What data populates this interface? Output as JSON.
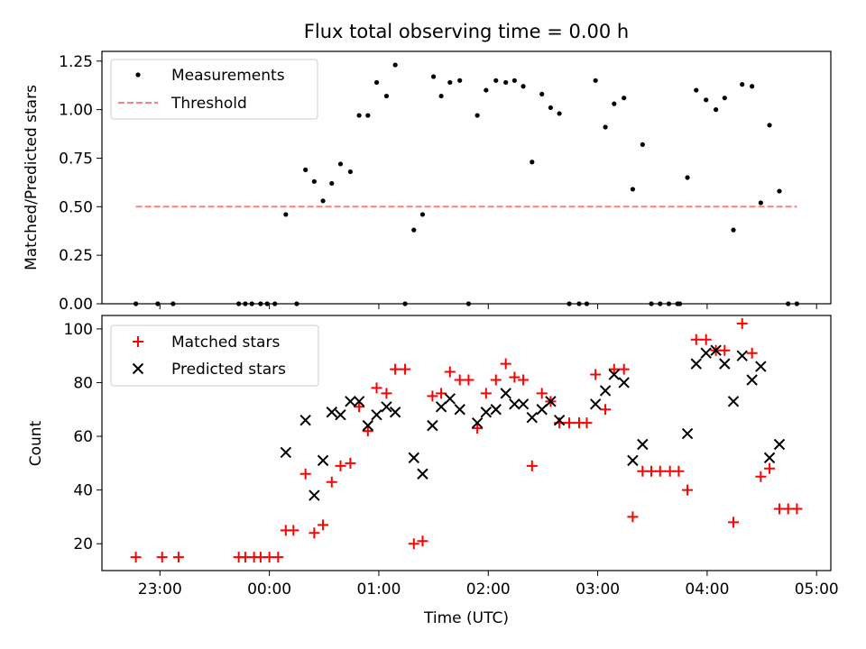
{
  "title": "Flux total observing time = 0.00 h",
  "chart_data": [
    {
      "type": "scatter",
      "panel": "top",
      "xlabel": "",
      "ylabel": "Matched/Predicted stars",
      "ylim": [
        0,
        1.3
      ],
      "yticks": [
        "0.00",
        "0.25",
        "0.50",
        "0.75",
        "1.00",
        "1.25"
      ],
      "legend_position": "top-left",
      "grid": false,
      "series": [
        {
          "name": "Measurements",
          "marker": "dot",
          "color": "#000000",
          "x": [
            22.78,
            22.98,
            23.12,
            23.72,
            23.78,
            23.84,
            23.92,
            23.98,
            24.05,
            24.15,
            24.25,
            24.33,
            24.41,
            24.49,
            24.57,
            24.65,
            24.74,
            24.82,
            24.9,
            24.98,
            25.07,
            25.15,
            25.24,
            25.32,
            25.4,
            25.5,
            25.57,
            25.65,
            25.74,
            25.82,
            25.9,
            25.98,
            26.07,
            26.16,
            26.24,
            26.32,
            26.4,
            26.49,
            26.57,
            26.65,
            26.74,
            26.83,
            26.9,
            26.98,
            27.07,
            27.15,
            27.24,
            27.32,
            27.41,
            27.49,
            27.57,
            27.65,
            27.73,
            27.75,
            27.82,
            27.9,
            27.99,
            28.08,
            28.16,
            28.24,
            28.32,
            28.41,
            28.49,
            28.57,
            28.66,
            28.74,
            28.82
          ],
          "y": [
            0,
            0,
            0,
            0,
            0,
            0,
            0,
            0,
            0,
            0.46,
            0,
            0.69,
            0.63,
            0.53,
            0.62,
            0.72,
            0.68,
            0.97,
            0.97,
            1.14,
            1.07,
            1.23,
            0,
            0.38,
            0.46,
            1.17,
            1.07,
            1.14,
            1.15,
            0,
            0.97,
            1.1,
            1.15,
            1.14,
            1.15,
            1.12,
            0.73,
            1.08,
            1.01,
            0.98,
            0,
            0,
            0,
            1.15,
            0.91,
            1.03,
            1.06,
            0.59,
            0.82,
            0,
            0,
            0,
            0,
            0,
            0.65,
            1.1,
            1.05,
            1.0,
            1.06,
            0.38,
            1.13,
            1.12,
            0.52,
            0.92,
            0.58,
            0,
            0
          ]
        },
        {
          "name": "Threshold",
          "marker": "dashed-line",
          "color": "#ff7f7f",
          "x": [
            22.78,
            28.82
          ],
          "y": [
            0.5,
            0.5
          ]
        }
      ]
    },
    {
      "type": "scatter",
      "panel": "bottom",
      "xlabel": "Time (UTC)",
      "ylabel": "Count",
      "ylim": [
        10,
        105
      ],
      "yticks": [
        "20",
        "40",
        "60",
        "80",
        "100"
      ],
      "xticks": [
        {
          "value": 23,
          "label": "23:00"
        },
        {
          "value": 24,
          "label": "00:00"
        },
        {
          "value": 25,
          "label": "01:00"
        },
        {
          "value": 26,
          "label": "02:00"
        },
        {
          "value": 27,
          "label": "03:00"
        },
        {
          "value": 28,
          "label": "04:00"
        },
        {
          "value": 29,
          "label": "05:00"
        }
      ],
      "xlim": [
        22.47,
        29.13
      ],
      "legend_position": "top-left",
      "grid": false,
      "series": [
        {
          "name": "Matched stars",
          "marker": "plus",
          "color": "#ff0000",
          "x": [
            22.78,
            23.02,
            23.17,
            23.72,
            23.78,
            23.86,
            23.92,
            24.0,
            24.08,
            24.15,
            24.22,
            24.33,
            24.41,
            24.49,
            24.57,
            24.65,
            24.74,
            24.82,
            24.9,
            24.98,
            25.07,
            25.15,
            25.24,
            25.32,
            25.4,
            25.49,
            25.57,
            25.65,
            25.74,
            25.82,
            25.9,
            25.98,
            26.07,
            26.16,
            26.24,
            26.32,
            26.4,
            26.49,
            26.57,
            26.65,
            26.74,
            26.83,
            26.9,
            26.98,
            27.07,
            27.15,
            27.24,
            27.32,
            27.41,
            27.49,
            27.57,
            27.66,
            27.74,
            27.82,
            27.9,
            27.99,
            28.08,
            28.16,
            28.24,
            28.32,
            28.41,
            28.49,
            28.57,
            28.66,
            28.74,
            28.82
          ],
          "y": [
            15,
            15,
            15,
            15,
            15,
            15,
            15,
            15,
            15,
            25,
            25,
            46,
            24,
            27,
            43,
            49,
            50,
            71,
            62,
            78,
            76,
            85,
            85,
            20,
            21,
            75,
            76,
            84,
            81,
            81,
            63,
            76,
            81,
            87,
            82,
            81,
            49,
            76,
            73,
            65,
            65,
            65,
            65,
            83,
            70,
            85,
            85,
            30,
            47,
            47,
            47,
            47,
            47,
            40,
            96,
            96,
            92,
            92,
            28,
            102,
            91,
            45,
            48,
            33,
            33,
            33
          ]
        },
        {
          "name": "Predicted stars",
          "marker": "x",
          "color": "#000000",
          "x": [
            24.15,
            24.33,
            24.41,
            24.49,
            24.57,
            24.65,
            24.74,
            24.82,
            24.9,
            24.98,
            25.07,
            25.15,
            25.32,
            25.4,
            25.49,
            25.57,
            25.65,
            25.74,
            25.9,
            25.98,
            26.07,
            26.16,
            26.24,
            26.32,
            26.4,
            26.49,
            26.57,
            26.65,
            26.98,
            27.07,
            27.15,
            27.24,
            27.32,
            27.41,
            27.82,
            27.9,
            27.99,
            28.08,
            28.16,
            28.24,
            28.32,
            28.41,
            28.49,
            28.57,
            28.66
          ],
          "y": [
            54,
            66,
            38,
            51,
            69,
            68,
            73,
            73,
            64,
            68,
            71,
            69,
            52,
            46,
            64,
            71,
            74,
            70,
            65,
            69,
            70,
            76,
            72,
            72,
            67,
            70,
            73,
            66,
            72,
            77,
            83,
            80,
            51,
            57,
            61,
            87,
            91,
            92,
            87,
            73,
            90,
            81,
            86,
            52,
            57
          ]
        }
      ]
    }
  ]
}
